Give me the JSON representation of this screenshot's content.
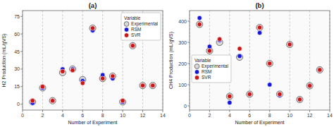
{
  "chart_data": [
    {
      "type": "scatter",
      "title": "(a)",
      "x_label": "Number of Experiment",
      "y_label": "H2 Production (mL/gVS)",
      "xlim": [
        0,
        14
      ],
      "ylim": [
        -5,
        80
      ],
      "xticks": [
        0,
        2,
        4,
        6,
        8,
        10,
        12,
        14
      ],
      "yticks": [
        0,
        15,
        30,
        45,
        60,
        75
      ],
      "grid": "x",
      "legend": "upper right",
      "legend_title": "Variable",
      "series": [
        {
          "name": "Experimental",
          "color": "#d8d8d8",
          "marker": "large_circle",
          "x": [
            1,
            2,
            3,
            4,
            5,
            6,
            7,
            8,
            9,
            10,
            11,
            12,
            13
          ],
          "values": [
            2,
            14,
            3,
            27,
            30,
            21,
            65,
            22,
            24,
            2,
            50,
            16,
            16
          ]
        },
        {
          "name": "RSM",
          "color": "#1414dd",
          "marker": "circle",
          "x": [
            1,
            2,
            3,
            4,
            5,
            6,
            7,
            8,
            9,
            10,
            11,
            12,
            13
          ],
          "values": [
            1,
            14,
            3,
            30,
            30,
            20,
            63,
            25,
            22,
            2,
            50,
            16,
            16
          ]
        },
        {
          "name": "SVR",
          "color": "#cc1414",
          "marker": "circle",
          "x": [
            1,
            2,
            3,
            4,
            5,
            6,
            7,
            8,
            9,
            10,
            11,
            12,
            13
          ],
          "values": [
            3,
            15,
            3,
            28,
            29,
            18,
            65,
            22,
            24,
            3,
            50,
            16,
            16
          ]
        }
      ]
    },
    {
      "type": "scatter",
      "title": "(b)",
      "x_label": "Number of Experiment",
      "y_label": "CH4 Production (mL/gVS)",
      "xlim": [
        0,
        14
      ],
      "ylim": [
        -20,
        450
      ],
      "xticks": [
        0,
        2,
        4,
        6,
        8,
        10,
        12,
        14
      ],
      "yticks": [
        0,
        100,
        200,
        300,
        400
      ],
      "grid": "x",
      "legend": "center left",
      "legend_title": "Variable",
      "series": [
        {
          "name": "Experimental",
          "color": "#d8d8d8",
          "marker": "large_circle",
          "x": [
            1,
            2,
            3,
            4,
            5,
            6,
            7,
            8,
            9,
            10,
            11,
            12,
            13
          ],
          "values": [
            385,
            260,
            300,
            45,
            230,
            55,
            370,
            200,
            55,
            290,
            30,
            95,
            170
          ]
        },
        {
          "name": "RSM",
          "color": "#1414dd",
          "marker": "circle",
          "x": [
            1,
            2,
            3,
            4,
            5,
            6,
            7,
            8,
            9,
            10,
            11,
            12,
            13
          ],
          "values": [
            415,
            280,
            310,
            15,
            235,
            55,
            345,
            100,
            50,
            290,
            30,
            95,
            170
          ]
        },
        {
          "name": "SVR",
          "color": "#cc1414",
          "marker": "circle",
          "x": [
            1,
            2,
            3,
            4,
            5,
            6,
            7,
            8,
            9,
            10,
            11,
            12,
            13
          ],
          "values": [
            385,
            260,
            315,
            45,
            270,
            55,
            370,
            200,
            55,
            290,
            30,
            95,
            170
          ]
        }
      ]
    }
  ]
}
